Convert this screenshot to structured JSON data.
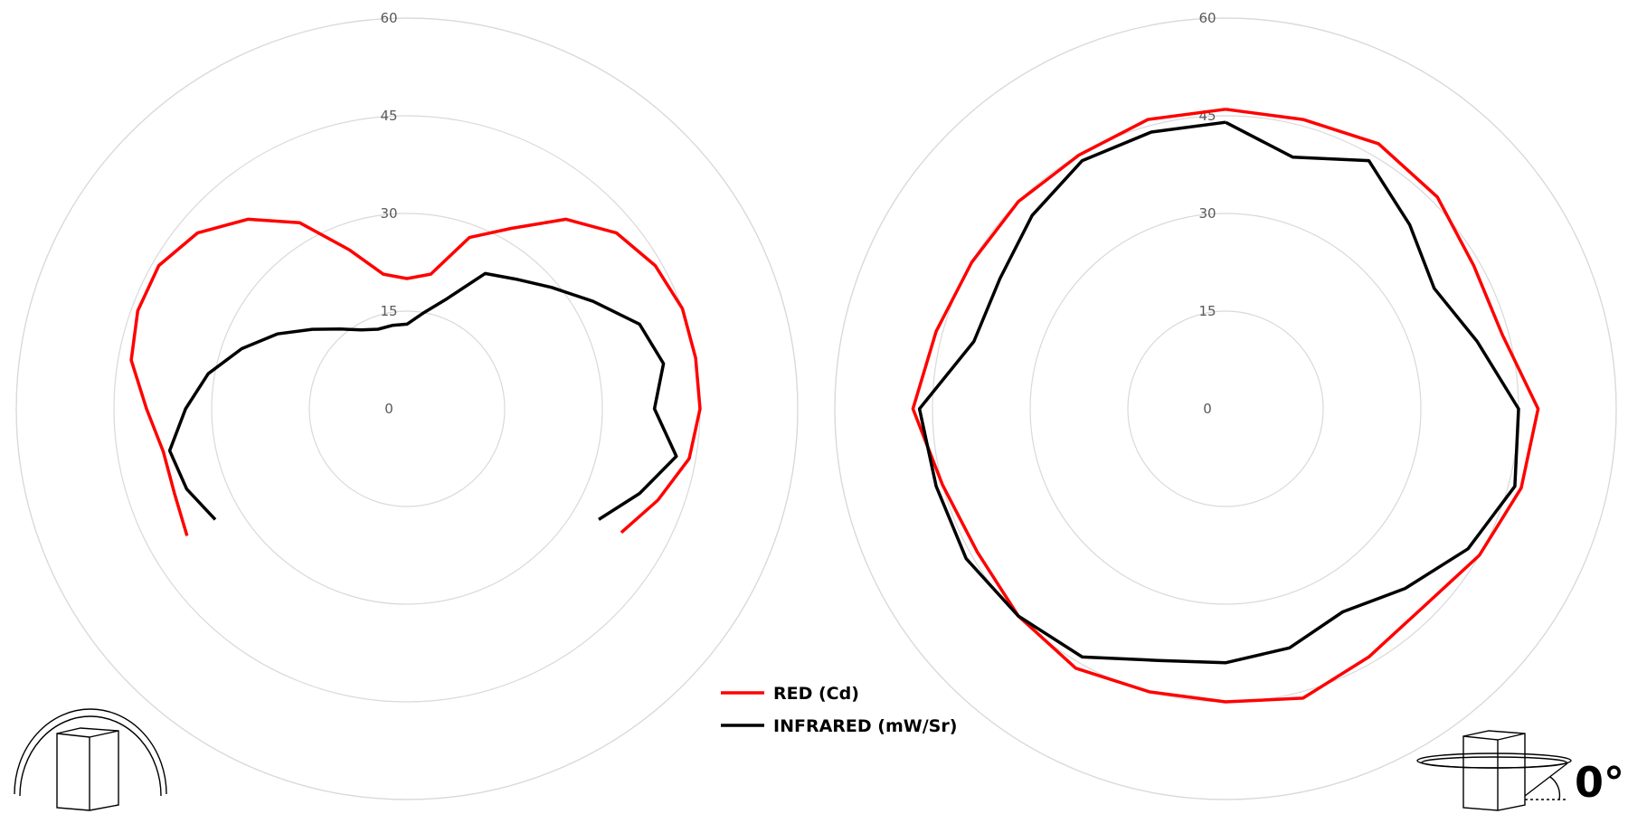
{
  "chart_data": [
    {
      "type": "polar-line",
      "radial_ticks": [
        "0",
        "15",
        "30",
        "45",
        "60"
      ],
      "rlim": [
        0,
        60
      ],
      "grid": true,
      "angle_unit": "deg, clockwise from top",
      "series": [
        {
          "name": "RED (Cd)",
          "color": "#ff0000",
          "angles": [
            -120,
            -110,
            -100,
            -90,
            -80,
            -70,
            -60,
            -50,
            -40,
            -30,
            -20,
            -10,
            0,
            10,
            20,
            30,
            40,
            50,
            60,
            70,
            80,
            90,
            100,
            110,
            120
          ],
          "values": [
            39,
            38,
            38,
            40,
            43,
            44,
            44,
            42,
            38,
            33,
            26,
            21,
            20,
            21,
            28,
            32,
            38,
            42,
            44,
            45,
            45,
            45,
            44,
            41,
            38
          ]
        },
        {
          "name": "INFRARED (mW/Sr)",
          "color": "#000000",
          "angles": [
            -120,
            -110,
            -100,
            -90,
            -80,
            -70,
            -60,
            -50,
            -40,
            -30,
            -20,
            -10,
            0,
            10,
            20,
            30,
            40,
            50,
            60,
            70,
            80,
            90,
            100,
            110,
            120
          ],
          "values": [
            34,
            36,
            37,
            34,
            31,
            27,
            23,
            19,
            16,
            14,
            13,
            13,
            13,
            15,
            18,
            24,
            26,
            29,
            33,
            38,
            40,
            38,
            42,
            38,
            34
          ]
        }
      ]
    },
    {
      "type": "polar-line",
      "radial_ticks": [
        "0",
        "15",
        "30",
        "45",
        "60"
      ],
      "rlim": [
        0,
        60
      ],
      "grid": true,
      "angle_unit": "deg, clockwise from top",
      "series": [
        {
          "name": "RED (Cd)",
          "color": "#ff0000",
          "angles": [
            0,
            15,
            30,
            45,
            60,
            75,
            90,
            105,
            120,
            135,
            150,
            165,
            180,
            195,
            210,
            225,
            240,
            255,
            270,
            285,
            300,
            315,
            330,
            345,
            360
          ],
          "values": [
            46,
            46,
            47,
            46,
            44,
            44,
            48,
            47,
            45,
            43,
            44,
            46,
            45,
            45,
            46,
            45,
            44,
            45,
            48,
            46,
            45,
            45,
            45,
            46,
            46
          ]
        },
        {
          "name": "INFRARED (mW/Sr)",
          "color": "#000000",
          "angles": [
            0,
            15,
            30,
            45,
            60,
            75,
            90,
            105,
            120,
            135,
            150,
            165,
            180,
            195,
            210,
            225,
            240,
            255,
            270,
            285,
            300,
            315,
            330,
            345,
            360
          ],
          "values": [
            44,
            40,
            44,
            40,
            37,
            40,
            45,
            46,
            43,
            39,
            36,
            38,
            39,
            40,
            44,
            45,
            46,
            46,
            47,
            40,
            40,
            42,
            44,
            44,
            44
          ]
        }
      ]
    }
  ],
  "legend": [
    {
      "label": "RED (Cd)",
      "color": "#ff0000"
    },
    {
      "label": "INFRARED (mW/Sr)",
      "color": "#000000"
    }
  ],
  "angle_label": "0°",
  "icons": {
    "left": "housing-dome-icon",
    "right": "housing-ring-icon"
  }
}
